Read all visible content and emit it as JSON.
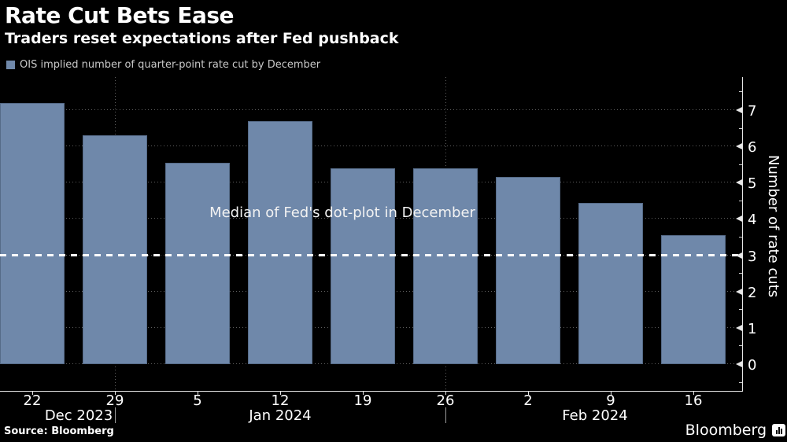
{
  "header": {
    "title": "Rate Cut Bets Ease",
    "subtitle": "Traders reset expectations after Fed pushback"
  },
  "legend": {
    "label": "OIS implied number of quarter-point rate cut by December",
    "swatch_color": "#6F88AA"
  },
  "chart_data": {
    "type": "bar",
    "series_name": "OIS implied number of quarter-point rate cut by December",
    "categories": [
      "22",
      "29",
      "5",
      "12",
      "19",
      "26",
      "2",
      "9",
      "16"
    ],
    "values": [
      7.2,
      6.3,
      5.55,
      6.7,
      5.4,
      5.4,
      5.15,
      4.45,
      3.55
    ],
    "month_groups": [
      {
        "label": "Dec 2023",
        "category_indexes": [
          0,
          1
        ]
      },
      {
        "label": "Jan 2024",
        "category_indexes": [
          2,
          3,
          4,
          5
        ]
      },
      {
        "label": "Feb 2024",
        "category_indexes": [
          6,
          7,
          8
        ]
      }
    ],
    "month_boundaries_after_index": [
      1,
      5
    ],
    "ylabel": "Number of rate cuts",
    "yticks": [
      0,
      1,
      2,
      3,
      4,
      5,
      6,
      7
    ],
    "ylim": [
      -0.73,
      7.9
    ],
    "grid": "dotted",
    "legend_position": "top-left",
    "yaxis_side": "right",
    "reference_line": {
      "value": 3,
      "label": "Median of Fed's dot-plot in December",
      "style": "dashed",
      "color": "#ffffff"
    },
    "bar_color": "#6F88AA"
  },
  "footer": {
    "source": "Source: Bloomberg",
    "brand": "Bloomberg"
  },
  "colors": {
    "background": "#000000",
    "bar": "#6F88AA",
    "grid_dots": "#5f5f5f",
    "axis": "#e6e6e6",
    "text": "#ffffff",
    "legend_text": "#c9c9c9"
  }
}
